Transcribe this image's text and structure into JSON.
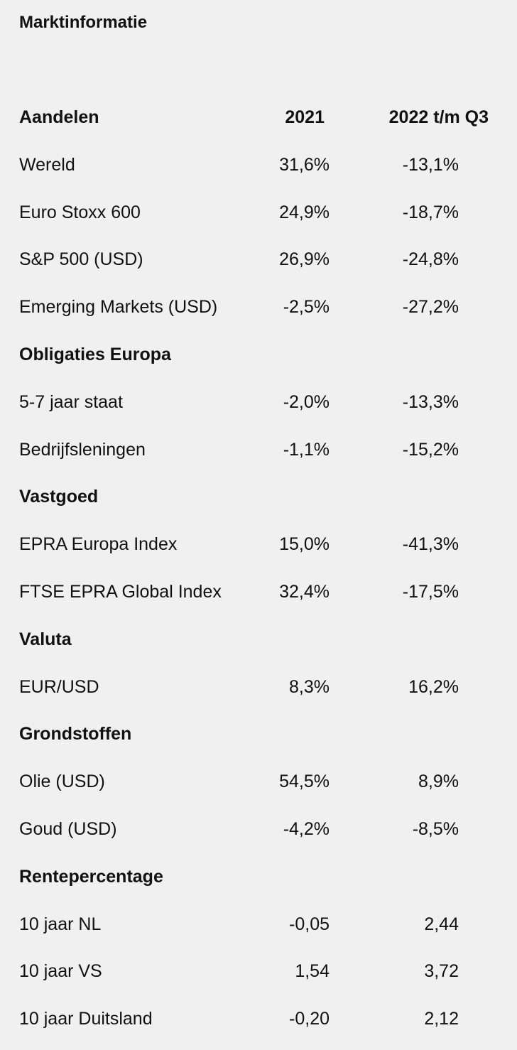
{
  "title": "Marktinformatie",
  "header": {
    "label": "Aandelen",
    "col_2021": "2021",
    "col_2022": "2022 t/m Q3"
  },
  "rows": [
    {
      "label": "Wereld",
      "v2021": "31,6%",
      "v2022": "-13,1%"
    },
    {
      "label": "Euro Stoxx 600",
      "v2021": "24,9%",
      "v2022": "-18,7%"
    },
    {
      "label": "S&P 500 (USD)",
      "v2021": "26,9%",
      "v2022": "-24,8%"
    },
    {
      "label": "Emerging Markets (USD)",
      "v2021": "-2,5%",
      "v2022": "-27,2%"
    },
    {
      "label": "Obligaties Europa",
      "section": true
    },
    {
      "label": "5-7 jaar staat",
      "v2021": "-2,0%",
      "v2022": "-13,3%"
    },
    {
      "label": "Bedrijfsleningen",
      "v2021": "-1,1%",
      "v2022": "-15,2%"
    },
    {
      "label": "Vastgoed",
      "section": true
    },
    {
      "label": "EPRA Europa Index",
      "v2021": "15,0%",
      "v2022": "-41,3%"
    },
    {
      "label": "FTSE EPRA Global Index",
      "v2021": "32,4%",
      "v2022": "-17,5%"
    },
    {
      "label": "Valuta",
      "section": true
    },
    {
      "label": "EUR/USD",
      "v2021": "8,3%",
      "v2022": "16,2%"
    },
    {
      "label": "Grondstoffen",
      "section": true
    },
    {
      "label": "Olie (USD)",
      "v2021": "54,5%",
      "v2022": "8,9%"
    },
    {
      "label": "Goud (USD)",
      "v2021": "-4,2%",
      "v2022": "-8,5%"
    },
    {
      "label": "Rentepercentage",
      "section": true
    },
    {
      "label": "10 jaar NL",
      "v2021": "-0,05",
      "v2022": "2,44"
    },
    {
      "label": "10 jaar VS",
      "v2021": "1,54",
      "v2022": "3,72"
    },
    {
      "label": "10 jaar Duitsland",
      "v2021": "-0,20",
      "v2022": "2,12"
    }
  ]
}
